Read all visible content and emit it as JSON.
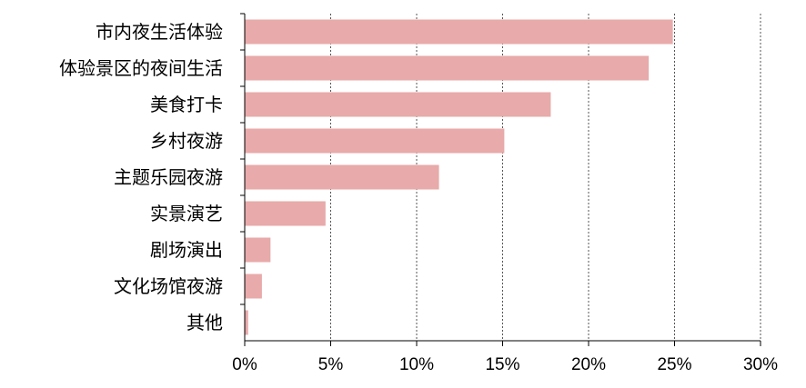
{
  "chart_data": {
    "type": "bar",
    "orientation": "horizontal",
    "title": "",
    "xlabel": "",
    "ylabel": "",
    "categories": [
      "市内夜生活体验",
      "体验景区的夜间生活",
      "美食打卡",
      "乡村夜游",
      "主题乐园夜游",
      "实景演艺",
      "剧场演出",
      "文化场馆夜游",
      "其他"
    ],
    "values": [
      24.9,
      23.5,
      17.8,
      15.1,
      11.3,
      4.7,
      1.5,
      1.0,
      0.2
    ],
    "xlim": [
      0,
      30
    ],
    "x_ticks": [
      0,
      5,
      10,
      15,
      20,
      25,
      30
    ],
    "x_tick_labels": [
      "0%",
      "5%",
      "10%",
      "15%",
      "20%",
      "25%",
      "30%"
    ],
    "grid": "vertical-dashed",
    "legend": "none",
    "bar_color": "#e8aaaa"
  }
}
